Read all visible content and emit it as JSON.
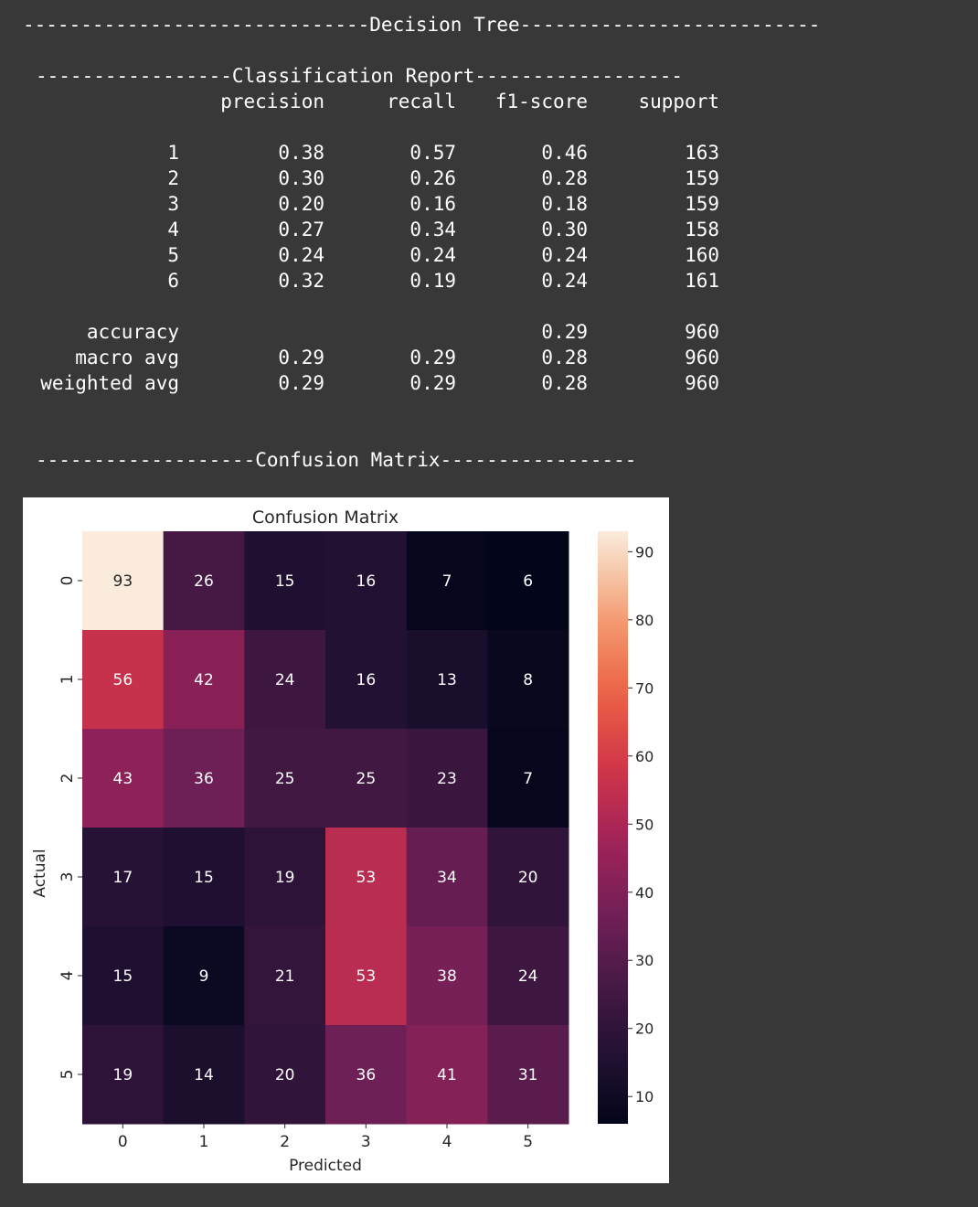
{
  "console": {
    "header": "------------------------------Decision Tree--------------------------",
    "report_banner": "-----------------Classification Report------------------",
    "report_columns": [
      "precision",
      "recall",
      "f1-score",
      "support"
    ],
    "report_rows": [
      {
        "label": "1",
        "precision": "0.38",
        "recall": "0.57",
        "f1": "0.46",
        "support": "163"
      },
      {
        "label": "2",
        "precision": "0.30",
        "recall": "0.26",
        "f1": "0.28",
        "support": "159"
      },
      {
        "label": "3",
        "precision": "0.20",
        "recall": "0.16",
        "f1": "0.18",
        "support": "159"
      },
      {
        "label": "4",
        "precision": "0.27",
        "recall": "0.34",
        "f1": "0.30",
        "support": "158"
      },
      {
        "label": "5",
        "precision": "0.24",
        "recall": "0.24",
        "f1": "0.24",
        "support": "160"
      },
      {
        "label": "6",
        "precision": "0.32",
        "recall": "0.19",
        "f1": "0.24",
        "support": "161"
      }
    ],
    "report_summary": [
      {
        "label": "accuracy",
        "precision": "",
        "recall": "",
        "f1": "0.29",
        "support": "960"
      },
      {
        "label": "macro avg",
        "precision": "0.29",
        "recall": "0.29",
        "f1": "0.28",
        "support": "960"
      },
      {
        "label": "weighted avg",
        "precision": "0.29",
        "recall": "0.29",
        "f1": "0.28",
        "support": "960"
      }
    ],
    "matrix_banner": "-------------------Confusion Matrix-----------------"
  },
  "chart_data": {
    "type": "heatmap",
    "title": "Confusion Matrix",
    "xlabel": "Predicted",
    "ylabel": "Actual",
    "x_categories": [
      "0",
      "1",
      "2",
      "3",
      "4",
      "5"
    ],
    "y_categories": [
      "0",
      "1",
      "2",
      "3",
      "4",
      "5"
    ],
    "values": [
      [
        93,
        26,
        15,
        16,
        7,
        6
      ],
      [
        56,
        42,
        24,
        16,
        13,
        8
      ],
      [
        43,
        36,
        25,
        25,
        23,
        7
      ],
      [
        17,
        15,
        19,
        53,
        34,
        20
      ],
      [
        15,
        9,
        21,
        53,
        38,
        24
      ],
      [
        19,
        14,
        20,
        36,
        41,
        31
      ]
    ],
    "colorbar": {
      "min": 6,
      "max": 93,
      "ticks": [
        10,
        20,
        30,
        40,
        50,
        60,
        70,
        80,
        90
      ],
      "colormap": "rocket"
    },
    "annotation_colors": {
      "light": "#ffffff",
      "dark": "#262626"
    }
  }
}
